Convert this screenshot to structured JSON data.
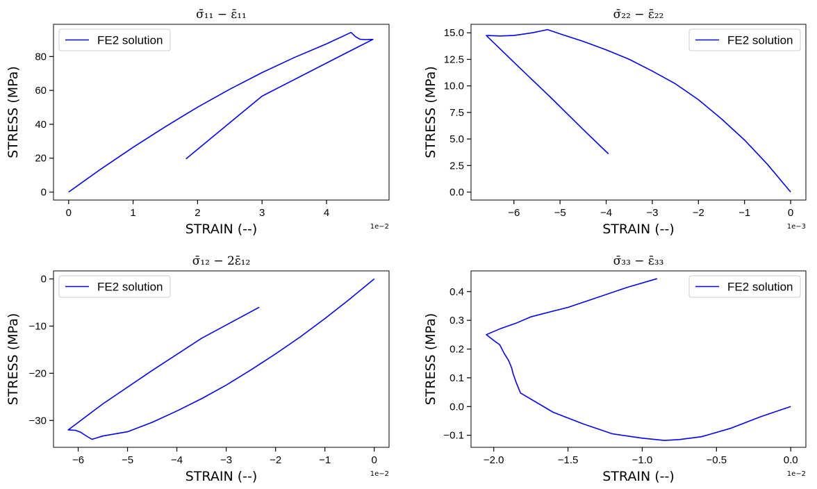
{
  "chart_data": [
    {
      "type": "line",
      "title": "σ̄₁₁ − ε̄₁₁",
      "xlabel": "STRAIN (--)",
      "ylabel": "STRESS (MPa)",
      "x_offset_label": "1e−2",
      "xlim": [
        -0.235,
        4.97
      ],
      "ylim": [
        -4.7,
        99.0
      ],
      "xticks": [
        0,
        1,
        2,
        3,
        4
      ],
      "xtick_labels": [
        "0",
        "1",
        "2",
        "3",
        "4"
      ],
      "yticks": [
        0,
        20,
        40,
        60,
        80
      ],
      "ytick_labels": [
        "0",
        "20",
        "40",
        "60",
        "80"
      ],
      "legend": {
        "label": "FE2 solution",
        "position": "upper left"
      },
      "color": "#0000ff",
      "series": [
        {
          "name": "FE2 solution",
          "x": [
            0,
            0.5,
            1.0,
            1.5,
            2.0,
            2.5,
            3.0,
            3.5,
            4.0,
            4.38,
            4.45,
            4.52,
            4.6,
            4.72,
            4.3,
            3.0,
            1.82
          ],
          "y": [
            0,
            13.6,
            26.4,
            38.6,
            50.1,
            60.7,
            70.5,
            79.4,
            87.5,
            94.2,
            91.7,
            90.2,
            90.0,
            90.1,
            82.0,
            56.6,
            19.6
          ]
        }
      ]
    },
    {
      "type": "line",
      "title": "σ̄₂₂ − ε̄₂₂",
      "xlabel": "STRAIN (--)",
      "ylabel": "STRESS (MPa)",
      "x_offset_label": "1e−3",
      "xlim": [
        -6.93,
        0.33
      ],
      "ylim": [
        -0.75,
        15.8
      ],
      "xticks": [
        -6,
        -5,
        -4,
        -3,
        -2,
        -1,
        0
      ],
      "xtick_labels": [
        "−6",
        "−5",
        "−4",
        "−3",
        "−2",
        "−1",
        "0"
      ],
      "yticks": [
        0.0,
        2.5,
        5.0,
        7.5,
        10.0,
        12.5,
        15.0
      ],
      "ytick_labels": [
        "0.0",
        "2.5",
        "5.0",
        "7.5",
        "10.0",
        "12.5",
        "15.0"
      ],
      "legend": {
        "label": "FE2 solution",
        "position": "upper right"
      },
      "color": "#0000ff",
      "series": [
        {
          "name": "FE2 solution",
          "x": [
            0,
            -0.5,
            -1.0,
            -1.5,
            -2.0,
            -2.5,
            -3.0,
            -3.5,
            -4.0,
            -4.5,
            -5.0,
            -5.27,
            -5.6,
            -6.0,
            -6.3,
            -6.6,
            -5.9,
            -5.2,
            -4.5,
            -3.95
          ],
          "y": [
            0,
            2.6,
            4.9,
            6.9,
            8.7,
            10.2,
            11.4,
            12.5,
            13.4,
            14.2,
            14.9,
            15.3,
            15.0,
            14.75,
            14.7,
            14.75,
            11.8,
            8.9,
            5.9,
            3.6
          ]
        }
      ]
    },
    {
      "type": "line",
      "title": "σ̄₁₂ − 2ε̄₁₂",
      "xlabel": "STRAIN (--)",
      "ylabel": "STRESS (MPa)",
      "x_offset_label": "1e−2",
      "xlim": [
        -6.5,
        0.3
      ],
      "ylim": [
        -35.7,
        1.7
      ],
      "xticks": [
        -6,
        -5,
        -4,
        -3,
        -2,
        -1,
        0
      ],
      "xtick_labels": [
        "−6",
        "−5",
        "−4",
        "−3",
        "−2",
        "−1",
        "0"
      ],
      "yticks": [
        -30,
        -20,
        -10,
        0
      ],
      "ytick_labels": [
        "−30",
        "−20",
        "−10",
        "0"
      ],
      "legend": {
        "label": "FE2 solution",
        "position": "upper left"
      },
      "color": "#0000ff",
      "series": [
        {
          "name": "FE2 solution",
          "x": [
            0,
            -0.5,
            -1.0,
            -1.5,
            -2.0,
            -2.5,
            -3.0,
            -3.5,
            -4.0,
            -4.5,
            -5.0,
            -5.5,
            -5.72,
            -5.85,
            -5.95,
            -6.05,
            -6.2,
            -5.5,
            -4.5,
            -3.5,
            -2.33
          ],
          "y": [
            0,
            -4.3,
            -8.4,
            -12.3,
            -15.9,
            -19.3,
            -22.5,
            -25.4,
            -28.0,
            -30.4,
            -32.4,
            -33.3,
            -34.0,
            -33.2,
            -32.5,
            -32.1,
            -32.0,
            -26.5,
            -19.4,
            -12.6,
            -6.0
          ]
        }
      ]
    },
    {
      "type": "line",
      "title": "σ̄₃₃ − ε̄₃₃",
      "xlabel": "STRAIN (--)",
      "ylabel": "STRESS (MPa)",
      "x_offset_label": "1e−2",
      "xlim": [
        -2.153,
        0.102
      ],
      "ylim": [
        -0.142,
        0.472
      ],
      "xticks": [
        -2.0,
        -1.5,
        -1.0,
        -0.5,
        0.0
      ],
      "xtick_labels": [
        "−2.0",
        "−1.5",
        "−1.0",
        "−0.5",
        "0.0"
      ],
      "yticks": [
        -0.1,
        0.0,
        0.1,
        0.2,
        0.3,
        0.4
      ],
      "ytick_labels": [
        "−0.1",
        "0.0",
        "0.1",
        "0.2",
        "0.3",
        "0.4"
      ],
      "legend": {
        "label": "FE2 solution",
        "position": "upper right"
      },
      "color": "#0000ff",
      "series": [
        {
          "name": "FE2 solution",
          "x": [
            0,
            -0.2,
            -0.4,
            -0.6,
            -0.75,
            -0.85,
            -1.0,
            -1.2,
            -1.4,
            -1.6,
            -1.82,
            -1.85,
            -1.87,
            -1.88,
            -1.9,
            -1.93,
            -1.96,
            -2.0,
            -2.05,
            -1.95,
            -1.85,
            -1.75,
            -1.6,
            -1.5,
            -1.3,
            -1.1,
            -0.9
          ],
          "y": [
            0,
            -0.035,
            -0.075,
            -0.105,
            -0.115,
            -0.118,
            -0.11,
            -0.095,
            -0.06,
            -0.02,
            0.047,
            0.085,
            0.115,
            0.135,
            0.16,
            0.185,
            0.215,
            0.23,
            0.25,
            0.272,
            0.29,
            0.312,
            0.332,
            0.345,
            0.38,
            0.415,
            0.445
          ]
        }
      ]
    }
  ]
}
